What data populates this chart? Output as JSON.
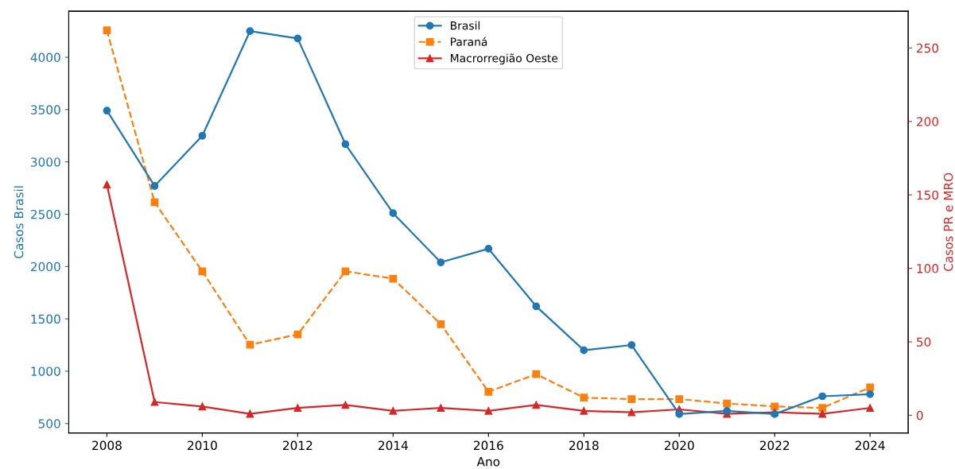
{
  "chart_data": {
    "type": "line",
    "xlabel": "Ano",
    "ylabel": "Casos Brasil",
    "y2label": "Casos PR e MRO",
    "x": [
      2008,
      2009,
      2010,
      2011,
      2012,
      2013,
      2014,
      2015,
      2016,
      2017,
      2018,
      2019,
      2020,
      2021,
      2022,
      2023,
      2024
    ],
    "series": [
      {
        "name": "Brasil",
        "color": "#1f77b4",
        "marker": "circle",
        "line_style": "solid",
        "values": [
          3490,
          2770,
          3250,
          4250,
          4180,
          3170,
          2510,
          2040,
          2170,
          1620,
          1200,
          1250,
          590,
          620,
          590,
          760,
          780
        ]
      },
      {
        "name": "Paraná",
        "color": "#ff7f0e",
        "marker": "square",
        "line_style": "dashed",
        "axis": "y2",
        "values": [
          262,
          145,
          98,
          48,
          55,
          98,
          93,
          62,
          16,
          28,
          12,
          11,
          11,
          8,
          6,
          5,
          19
        ]
      },
      {
        "name": "Macrorregião Oeste",
        "color": "#d62728",
        "marker": "triangle",
        "line_style": "solid",
        "axis": "y2",
        "values": [
          157,
          9,
          6,
          1,
          5,
          7,
          3,
          5,
          3,
          7,
          3,
          2,
          4,
          1,
          2,
          1,
          5
        ]
      }
    ],
    "xlim": [
      2007.2,
      2024.8
    ],
    "xticks": [
      2008,
      2010,
      2012,
      2014,
      2016,
      2018,
      2020,
      2022,
      2024
    ],
    "ylim": [
      410,
      4440
    ],
    "yticks": [
      500,
      1000,
      1500,
      2000,
      2500,
      3000,
      3500,
      4000
    ],
    "y2lim": [
      -12,
      275
    ],
    "y2ticks": [
      0,
      50,
      100,
      150,
      200,
      250
    ],
    "legend": "top",
    "grid": false
  }
}
